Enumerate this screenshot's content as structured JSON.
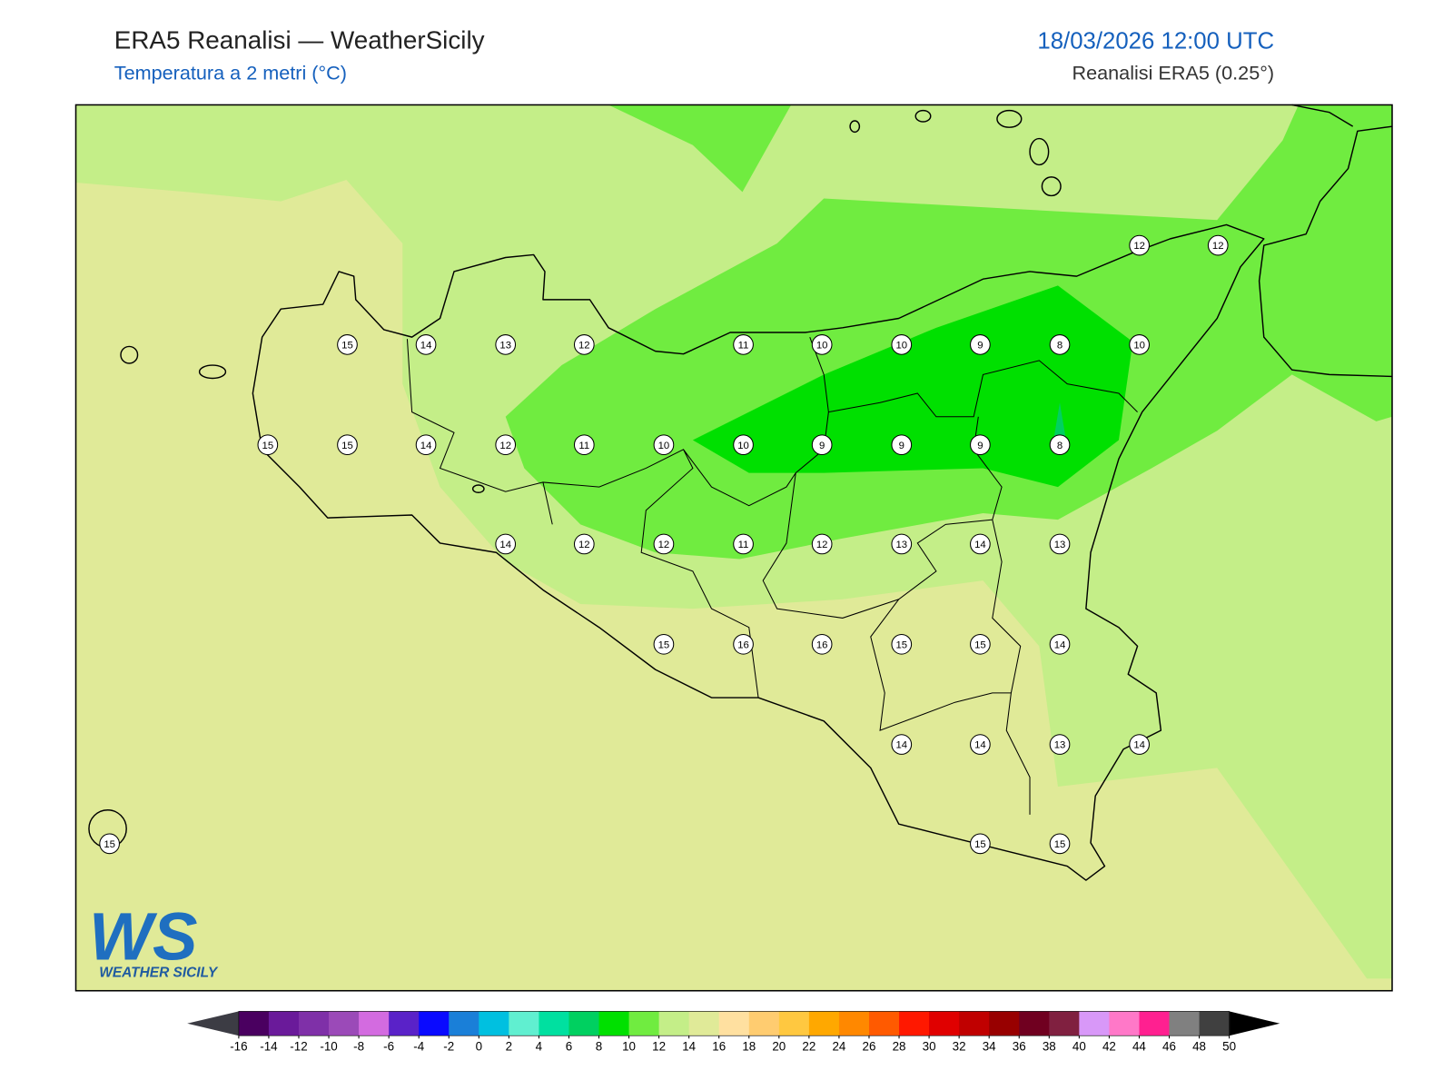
{
  "header": {
    "title": "ERA5 Reanalisi — WeatherSicily",
    "subtitle": "Temperatura a 2 metri (°C)",
    "datetime": "18/03/2026 12:00 UTC",
    "source": "Reanalisi ERA5 (0.25°)"
  },
  "stations": {
    "values": [
      12,
      12,
      15,
      14,
      13,
      12,
      11,
      10,
      10,
      9,
      8,
      10,
      15,
      15,
      14,
      12,
      11,
      10,
      10,
      9,
      9,
      9,
      8,
      14,
      12,
      12,
      11,
      12,
      13,
      14,
      13,
      15,
      16,
      16,
      15,
      15,
      14,
      14,
      14,
      13,
      14,
      15,
      15,
      15
    ]
  },
  "colorbar": {
    "ticks": [
      -16,
      -14,
      -12,
      -10,
      -8,
      -6,
      -4,
      -2,
      0,
      2,
      4,
      6,
      8,
      10,
      12,
      14,
      16,
      18,
      20,
      22,
      24,
      26,
      28,
      30,
      32,
      34,
      36,
      38,
      40,
      42,
      44,
      46,
      48,
      50
    ],
    "colors": [
      "#4a0060",
      "#6a1a9a",
      "#7f30a8",
      "#9b4ab8",
      "#d36be0",
      "#5a22c8",
      "#0a0aff",
      "#1a7fd8",
      "#00c0e0",
      "#60efd0",
      "#00e0a0",
      "#00d060",
      "#00e000",
      "#70ec40",
      "#c4ee88",
      "#e0ea98",
      "#ffe0a0",
      "#ffcc70",
      "#ffc840",
      "#ffa800",
      "#ff8800",
      "#ff5a00",
      "#ff1800",
      "#e00000",
      "#c00000",
      "#980000",
      "#700020",
      "#802040",
      "#d898f8",
      "#ff78c8",
      "#ff2090",
      "#808080",
      "#404040"
    ],
    "under_color": "#3c3c44",
    "over_color": "#000000"
  },
  "logo": {
    "mark": "WS",
    "name": "WEATHER SICILY"
  }
}
